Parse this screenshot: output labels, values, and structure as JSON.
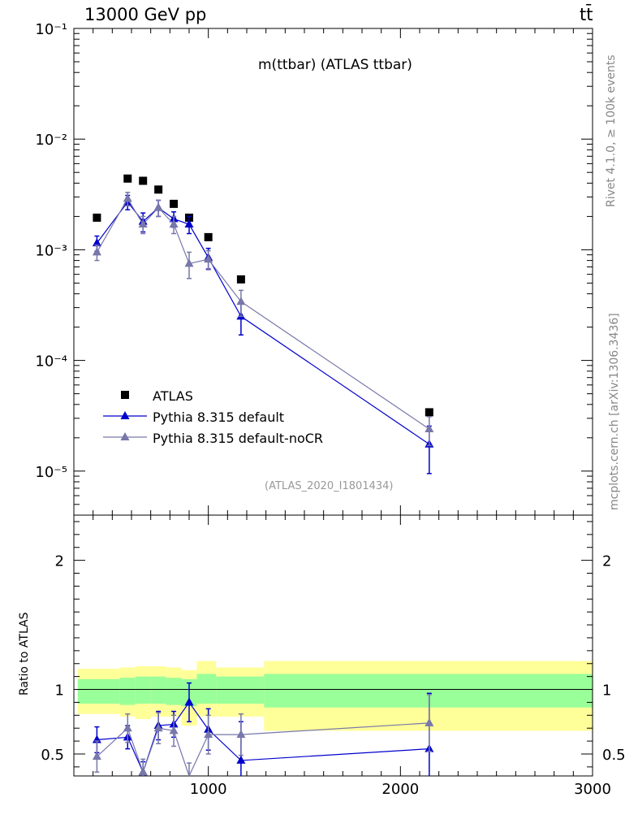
{
  "header": {
    "energy_label": "13000 GeV pp",
    "process_label": "tt̄"
  },
  "side_labels": {
    "rivet": "Rivet 4.1.0, ≥ 100k events",
    "mcplots": "mcplots.cern.ch [arXiv:1306.3436]"
  },
  "chart_data": [
    {
      "type": "scatter",
      "title": "m(ttbar) (ATLAS ttbar)",
      "analysis_id": "(ATLAS_2020_I1801434)",
      "yscale": "log",
      "ylim": [
        4e-06,
        0.1
      ],
      "xlim": [
        300,
        3000
      ],
      "ytick_labels": [
        "10⁻⁵",
        "10⁻⁴",
        "10⁻³",
        "10⁻²",
        "10⁻¹"
      ],
      "ytick_values": [
        1e-05,
        0.0001,
        0.001,
        0.01,
        0.1
      ],
      "legend": {
        "position": "lower-left",
        "entries": [
          "ATLAS",
          "Pythia 8.315 default",
          "Pythia 8.315 default-noCR"
        ]
      },
      "series": [
        {
          "name": "ATLAS",
          "color": "#000000",
          "marker": "square",
          "x": [
            420,
            580,
            660,
            740,
            820,
            900,
            1000,
            1170,
            2150
          ],
          "y": [
            0.00195,
            0.0044,
            0.0042,
            0.0035,
            0.0026,
            0.00195,
            0.0013,
            0.00054,
            3.4e-05
          ]
        },
        {
          "name": "Pythia 8.315 default",
          "color": "#0000cc",
          "marker": "triangle",
          "x": [
            420,
            580,
            660,
            740,
            820,
            900,
            1000,
            1170,
            2150
          ],
          "y": [
            0.00115,
            0.0027,
            0.0018,
            0.0024,
            0.0019,
            0.0017,
            0.00085,
            0.00025,
            1.75e-05
          ],
          "err": [
            0.00018,
            0.0004,
            0.00035,
            0.0004,
            0.0003,
            0.0003,
            0.00018,
            8e-05,
            8e-06
          ]
        },
        {
          "name": "Pythia 8.315 default-noCR",
          "color": "#7777aa",
          "marker": "triangle",
          "x": [
            420,
            580,
            660,
            740,
            820,
            900,
            1000,
            1170,
            2150
          ],
          "y": [
            0.00095,
            0.0029,
            0.0017,
            0.0024,
            0.0017,
            0.00075,
            0.00082,
            0.00034,
            2.4e-05
          ],
          "err": [
            0.00015,
            0.0004,
            0.0003,
            0.0004,
            0.0003,
            0.0002,
            0.00016,
            9e-05,
            7e-06
          ]
        }
      ]
    },
    {
      "type": "scatter",
      "ylabel": "Ratio to ATLAS",
      "ylim": [
        0.33,
        2.35
      ],
      "xlim": [
        300,
        3000
      ],
      "ytick_labels": [
        "0.5",
        "1",
        "2"
      ],
      "ytick_values": [
        0.5,
        1,
        2
      ],
      "xtick_labels": [
        "1000",
        "2000",
        "3000"
      ],
      "xtick_values": [
        1000,
        2000,
        3000
      ],
      "bands": {
        "edges": [
          320,
          540,
          620,
          700,
          780,
          860,
          940,
          1040,
          1290,
          3000
        ],
        "inner_color": "#99ff99",
        "outer_color": "#ffff99",
        "inner_low": [
          0.89,
          0.88,
          0.89,
          0.89,
          0.88,
          0.87,
          0.89,
          0.89,
          0.86
        ],
        "inner_high": [
          1.08,
          1.09,
          1.1,
          1.1,
          1.09,
          1.08,
          1.12,
          1.1,
          1.12
        ],
        "outer_low": [
          0.81,
          0.79,
          0.77,
          0.79,
          0.79,
          0.72,
          0.79,
          0.79,
          0.68
        ],
        "outer_high": [
          1.16,
          1.17,
          1.18,
          1.18,
          1.17,
          1.15,
          1.22,
          1.17,
          1.22
        ]
      },
      "series": [
        {
          "name": "Pythia 8.315 default",
          "color": "#0000cc",
          "x": [
            420,
            580,
            660,
            740,
            820,
            900,
            1000,
            1170,
            2150
          ],
          "y": [
            0.61,
            0.63,
            0.36,
            0.72,
            0.73,
            0.9,
            0.69,
            0.45,
            0.54
          ],
          "err": [
            0.1,
            0.09,
            0.08,
            0.11,
            0.1,
            0.15,
            0.16,
            0.3,
            0.43
          ]
        },
        {
          "name": "Pythia 8.315 default-noCR",
          "color": "#7777aa",
          "x": [
            420,
            580,
            660,
            740,
            820,
            900,
            1000,
            1170,
            2150
          ],
          "y": [
            0.48,
            0.7,
            0.36,
            0.7,
            0.68,
            0.31,
            0.65,
            0.65,
            0.74
          ],
          "err": [
            0.12,
            0.11,
            0.1,
            0.12,
            0.12,
            0.12,
            0.15,
            0.16,
            0.22
          ]
        }
      ]
    }
  ]
}
